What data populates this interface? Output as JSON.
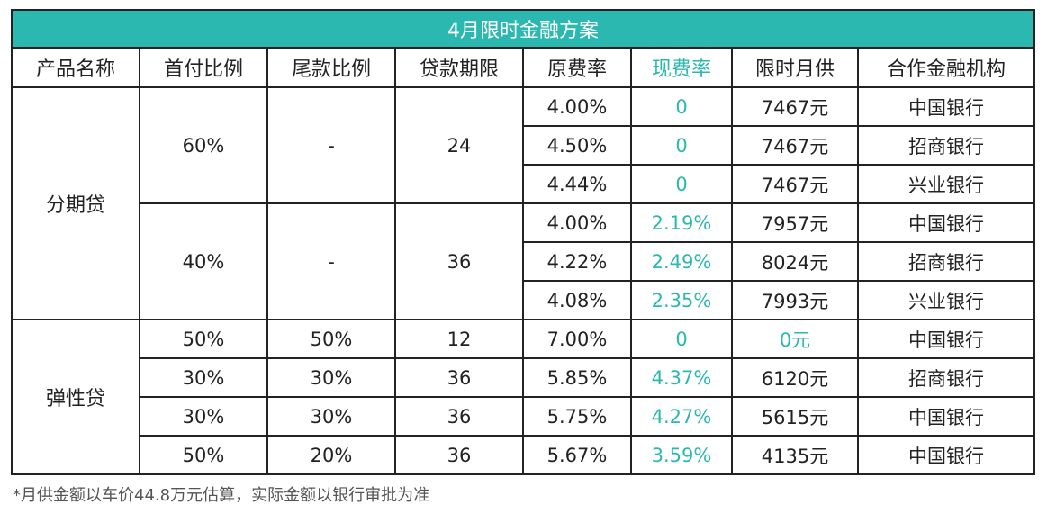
{
  "table": {
    "title": "4月限时金融方案",
    "headers": [
      "产品名称",
      "首付比例",
      "尾款比例",
      "贷款期限",
      "原费率",
      "现费率",
      "限时月供",
      "合作金融机构"
    ],
    "groups": [
      {
        "product": "分期贷",
        "subgroups": [
          {
            "down_payment": "60%",
            "balloon": "-",
            "term": "24",
            "rows": [
              {
                "orig_rate": "4.00%",
                "curr_rate": "0",
                "monthly": "7467元",
                "institution": "中国银行"
              },
              {
                "orig_rate": "4.50%",
                "curr_rate": "0",
                "monthly": "7467元",
                "institution": "招商银行"
              },
              {
                "orig_rate": "4.44%",
                "curr_rate": "0",
                "monthly": "7467元",
                "institution": "兴业银行"
              }
            ]
          },
          {
            "down_payment": "40%",
            "balloon": "-",
            "term": "36",
            "rows": [
              {
                "orig_rate": "4.00%",
                "curr_rate": "2.19%",
                "monthly": "7957元",
                "institution": "中国银行"
              },
              {
                "orig_rate": "4.22%",
                "curr_rate": "2.49%",
                "monthly": "8024元",
                "institution": "招商银行"
              },
              {
                "orig_rate": "4.08%",
                "curr_rate": "2.35%",
                "monthly": "7993元",
                "institution": "兴业银行"
              }
            ]
          }
        ]
      },
      {
        "product": "弹性贷",
        "rows": [
          {
            "down_payment": "50%",
            "balloon": "50%",
            "term": "12",
            "orig_rate": "7.00%",
            "curr_rate": "0",
            "monthly": "0元",
            "institution": "中国银行"
          },
          {
            "down_payment": "30%",
            "balloon": "30%",
            "term": "36",
            "orig_rate": "5.85%",
            "curr_rate": "4.37%",
            "monthly": "6120元",
            "institution": "招商银行"
          },
          {
            "down_payment": "30%",
            "balloon": "30%",
            "term": "36",
            "orig_rate": "5.75%",
            "curr_rate": "4.27%",
            "monthly": "5615元",
            "institution": "中国银行"
          },
          {
            "down_payment": "50%",
            "balloon": "20%",
            "term": "36",
            "orig_rate": "5.67%",
            "curr_rate": "3.59%",
            "monthly": "4135元",
            "institution": "中国银行"
          }
        ]
      }
    ]
  },
  "footnote": "*月供金额以车价44.8万元估算，实际金额以银行审批为准",
  "colors": {
    "accent": "#2bb8b0",
    "border": "#222222",
    "text": "#222222"
  }
}
